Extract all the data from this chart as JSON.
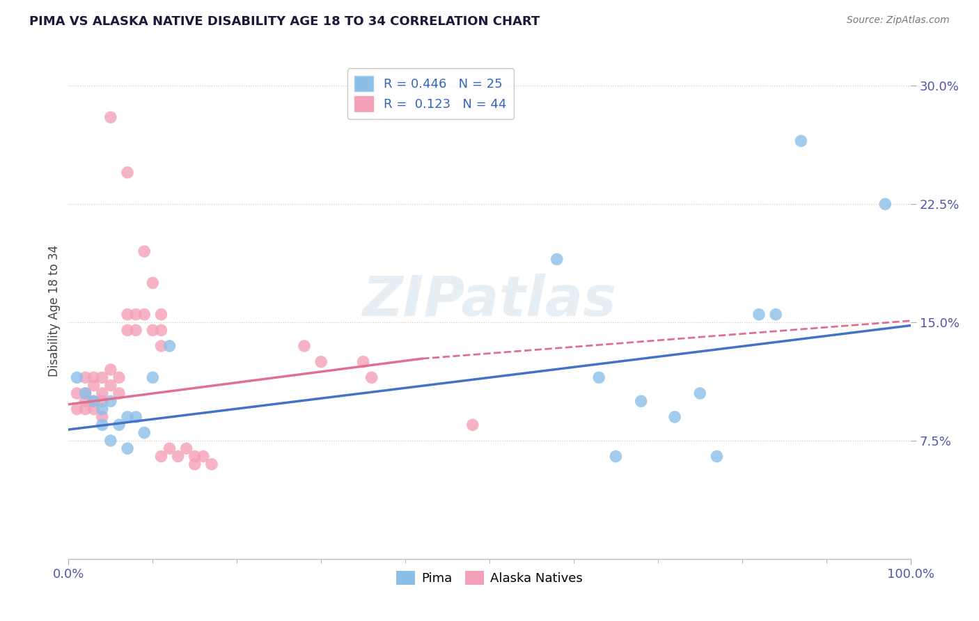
{
  "title": "PIMA VS ALASKA NATIVE DISABILITY AGE 18 TO 34 CORRELATION CHART",
  "source": "Source: ZipAtlas.com",
  "ylabel": "Disability Age 18 to 34",
  "xlim": [
    0,
    1.0
  ],
  "ylim": [
    0.0,
    0.315
  ],
  "xtick_positions": [
    0.0,
    1.0
  ],
  "xtick_labels": [
    "0.0%",
    "100.0%"
  ],
  "ytick_positions": [
    0.075,
    0.15,
    0.225,
    0.3
  ],
  "ytick_labels": [
    "7.5%",
    "15.0%",
    "22.5%",
    "30.0%"
  ],
  "grid_color": "#cccccc",
  "background_color": "#ffffff",
  "pima_color": "#8bbfe8",
  "alaska_color": "#f4a0b8",
  "pima_line_color": "#4472c4",
  "alaska_line_color": "#e07090",
  "pima_R": 0.446,
  "pima_N": 25,
  "alaska_R": 0.123,
  "alaska_N": 44,
  "pima_scatter": [
    [
      0.01,
      0.115
    ],
    [
      0.02,
      0.105
    ],
    [
      0.03,
      0.1
    ],
    [
      0.04,
      0.095
    ],
    [
      0.04,
      0.085
    ],
    [
      0.05,
      0.1
    ],
    [
      0.05,
      0.075
    ],
    [
      0.06,
      0.085
    ],
    [
      0.07,
      0.09
    ],
    [
      0.07,
      0.07
    ],
    [
      0.08,
      0.09
    ],
    [
      0.09,
      0.08
    ],
    [
      0.1,
      0.115
    ],
    [
      0.12,
      0.135
    ],
    [
      0.58,
      0.19
    ],
    [
      0.63,
      0.115
    ],
    [
      0.65,
      0.065
    ],
    [
      0.68,
      0.1
    ],
    [
      0.72,
      0.09
    ],
    [
      0.75,
      0.105
    ],
    [
      0.77,
      0.065
    ],
    [
      0.82,
      0.155
    ],
    [
      0.84,
      0.155
    ],
    [
      0.87,
      0.265
    ],
    [
      0.97,
      0.225
    ]
  ],
  "alaska_scatter": [
    [
      0.01,
      0.105
    ],
    [
      0.01,
      0.095
    ],
    [
      0.02,
      0.115
    ],
    [
      0.02,
      0.105
    ],
    [
      0.02,
      0.1
    ],
    [
      0.02,
      0.095
    ],
    [
      0.03,
      0.115
    ],
    [
      0.03,
      0.11
    ],
    [
      0.03,
      0.1
    ],
    [
      0.03,
      0.095
    ],
    [
      0.04,
      0.115
    ],
    [
      0.04,
      0.105
    ],
    [
      0.04,
      0.1
    ],
    [
      0.04,
      0.09
    ],
    [
      0.05,
      0.12
    ],
    [
      0.05,
      0.11
    ],
    [
      0.06,
      0.115
    ],
    [
      0.06,
      0.105
    ],
    [
      0.07,
      0.155
    ],
    [
      0.07,
      0.145
    ],
    [
      0.08,
      0.155
    ],
    [
      0.08,
      0.145
    ],
    [
      0.09,
      0.155
    ],
    [
      0.1,
      0.145
    ],
    [
      0.11,
      0.145
    ],
    [
      0.11,
      0.135
    ],
    [
      0.11,
      0.065
    ],
    [
      0.12,
      0.07
    ],
    [
      0.13,
      0.065
    ],
    [
      0.14,
      0.07
    ],
    [
      0.15,
      0.065
    ],
    [
      0.15,
      0.06
    ],
    [
      0.16,
      0.065
    ],
    [
      0.17,
      0.06
    ],
    [
      0.28,
      0.135
    ],
    [
      0.3,
      0.125
    ],
    [
      0.35,
      0.125
    ],
    [
      0.36,
      0.115
    ],
    [
      0.48,
      0.085
    ],
    [
      0.07,
      0.245
    ],
    [
      0.09,
      0.195
    ],
    [
      0.1,
      0.175
    ],
    [
      0.11,
      0.155
    ],
    [
      0.05,
      0.28
    ]
  ],
  "pima_line": {
    "x0": 0.0,
    "y0": 0.082,
    "x1": 1.0,
    "y1": 0.148
  },
  "alaska_line_solid": {
    "x0": 0.0,
    "y0": 0.098,
    "x1": 0.42,
    "y1": 0.127
  },
  "alaska_line_dashed": {
    "x0": 0.42,
    "y0": 0.127,
    "x1": 1.0,
    "y1": 0.151
  },
  "watermark_text": "ZIPatlas",
  "watermark_zip_color": "#c5d8ec",
  "watermark_atlas_color": "#c5ccdc"
}
